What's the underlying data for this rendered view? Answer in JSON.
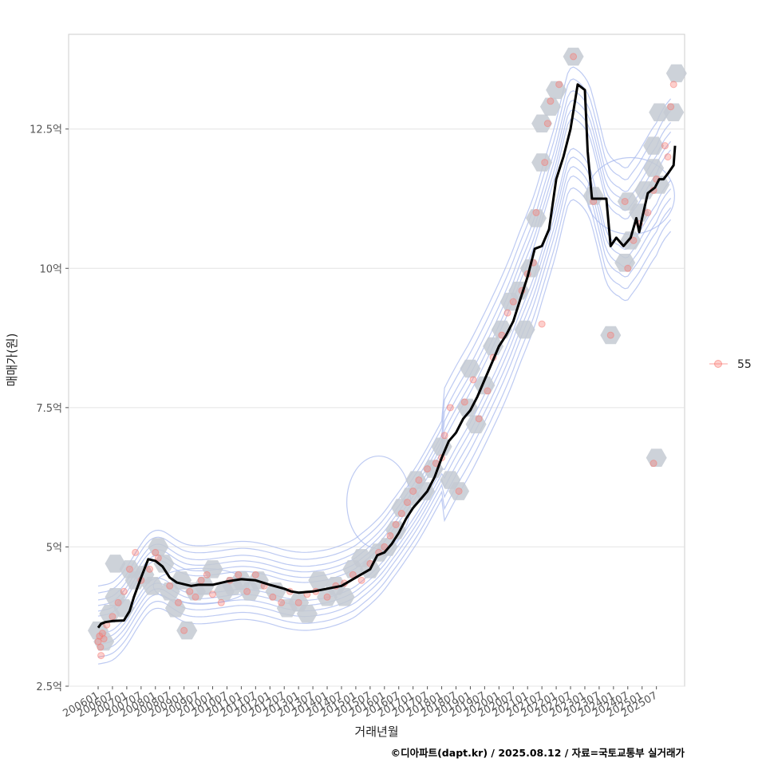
{
  "chart_data": {
    "type": "line",
    "xlabel": "거래년월",
    "ylabel": "매매가(원)",
    "caption": "©디아파트(dapt.kr) / 2025.08.12 / 자료=국토교통부 실거래가",
    "ylim": [
      2.5,
      14.2
    ],
    "y_ticks": [
      {
        "value": 2.5,
        "label": "2.5억"
      },
      {
        "value": 5,
        "label": "5억"
      },
      {
        "value": 7.5,
        "label": "7.5억"
      },
      {
        "value": 10,
        "label": "10억"
      },
      {
        "value": 12.5,
        "label": "12.5억"
      }
    ],
    "x_tick_labels": [
      "200601",
      "200607",
      "200701",
      "200707",
      "200801",
      "200807",
      "200901",
      "200907",
      "201001",
      "201007",
      "201101",
      "201107",
      "201201",
      "201207",
      "201301",
      "201307",
      "201401",
      "201407",
      "201501",
      "201507",
      "201601",
      "201607",
      "201701",
      "201707",
      "201801",
      "201807",
      "201901",
      "201907",
      "202001",
      "202007",
      "202101",
      "202107",
      "202201",
      "202207",
      "202301",
      "202307",
      "202401",
      "202407",
      "202501",
      "202507"
    ],
    "grid": true,
    "legend": {
      "position": "right",
      "entries": [
        {
          "label": "55",
          "color": "#f8766d"
        }
      ]
    },
    "colors": {
      "trend": "#000000",
      "points": "#f8766d",
      "hex": "#c4cad2",
      "contour": "#a7b8ee"
    },
    "series": [
      {
        "role": "moving-average",
        "points": [
          [
            2006.0,
            3.55
          ],
          [
            2006.1,
            3.62
          ],
          [
            2006.25,
            3.65
          ],
          [
            2006.5,
            3.67
          ],
          [
            2006.9,
            3.68
          ],
          [
            2007.1,
            3.85
          ],
          [
            2007.25,
            4.1
          ],
          [
            2007.5,
            4.45
          ],
          [
            2007.75,
            4.78
          ],
          [
            2008.0,
            4.75
          ],
          [
            2008.25,
            4.65
          ],
          [
            2008.5,
            4.45
          ],
          [
            2008.75,
            4.36
          ],
          [
            2009.0,
            4.33
          ],
          [
            2009.25,
            4.3
          ],
          [
            2009.5,
            4.32
          ],
          [
            2010.0,
            4.32
          ],
          [
            2010.5,
            4.38
          ],
          [
            2011.0,
            4.42
          ],
          [
            2011.5,
            4.4
          ],
          [
            2012.0,
            4.32
          ],
          [
            2012.5,
            4.25
          ],
          [
            2012.75,
            4.2
          ],
          [
            2013.0,
            4.18
          ],
          [
            2013.5,
            4.2
          ],
          [
            2014.0,
            4.25
          ],
          [
            2014.5,
            4.3
          ],
          [
            2015.0,
            4.45
          ],
          [
            2015.5,
            4.6
          ],
          [
            2015.75,
            4.85
          ],
          [
            2016.0,
            4.9
          ],
          [
            2016.25,
            5.05
          ],
          [
            2016.5,
            5.25
          ],
          [
            2016.75,
            5.5
          ],
          [
            2017.0,
            5.7
          ],
          [
            2017.25,
            5.85
          ],
          [
            2017.5,
            6.0
          ],
          [
            2017.75,
            6.25
          ],
          [
            2018.0,
            6.6
          ],
          [
            2018.25,
            6.9
          ],
          [
            2018.5,
            7.05
          ],
          [
            2018.75,
            7.3
          ],
          [
            2019.0,
            7.45
          ],
          [
            2019.25,
            7.7
          ],
          [
            2019.5,
            8.0
          ],
          [
            2019.75,
            8.3
          ],
          [
            2020.0,
            8.6
          ],
          [
            2020.25,
            8.8
          ],
          [
            2020.5,
            9.05
          ],
          [
            2020.75,
            9.45
          ],
          [
            2021.0,
            9.85
          ],
          [
            2021.25,
            10.35
          ],
          [
            2021.5,
            10.4
          ],
          [
            2021.75,
            10.7
          ],
          [
            2022.0,
            11.6
          ],
          [
            2022.25,
            12.0
          ],
          [
            2022.5,
            12.5
          ],
          [
            2022.75,
            13.3
          ],
          [
            2023.0,
            13.2
          ],
          [
            2023.1,
            12.1
          ],
          [
            2023.25,
            11.25
          ],
          [
            2023.75,
            11.25
          ],
          [
            2023.9,
            10.4
          ],
          [
            2024.1,
            10.55
          ],
          [
            2024.35,
            10.4
          ],
          [
            2024.6,
            10.55
          ],
          [
            2024.8,
            10.9
          ],
          [
            2024.9,
            10.65
          ],
          [
            2025.0,
            10.9
          ],
          [
            2025.2,
            11.35
          ],
          [
            2025.45,
            11.45
          ],
          [
            2025.6,
            11.6
          ],
          [
            2025.75,
            11.6
          ],
          [
            2025.9,
            11.7
          ],
          [
            2026.1,
            11.85
          ],
          [
            2026.15,
            12.2
          ]
        ]
      },
      {
        "role": "transactions",
        "points": [
          [
            2006.0,
            3.3
          ],
          [
            2006.05,
            3.4
          ],
          [
            2006.08,
            3.2
          ],
          [
            2006.1,
            3.05
          ],
          [
            2006.15,
            3.45
          ],
          [
            2006.2,
            3.35
          ],
          [
            2006.3,
            3.6
          ],
          [
            2006.5,
            3.75
          ],
          [
            2006.7,
            4.0
          ],
          [
            2006.9,
            4.2
          ],
          [
            2007.1,
            4.6
          ],
          [
            2007.3,
            4.9
          ],
          [
            2007.5,
            4.4
          ],
          [
            2007.8,
            4.6
          ],
          [
            2008.0,
            4.9
          ],
          [
            2008.1,
            4.8
          ],
          [
            2008.5,
            4.3
          ],
          [
            2008.8,
            4.0
          ],
          [
            2009.0,
            3.5
          ],
          [
            2009.2,
            4.2
          ],
          [
            2009.4,
            4.1
          ],
          [
            2009.6,
            4.4
          ],
          [
            2009.8,
            4.5
          ],
          [
            2010.0,
            4.15
          ],
          [
            2010.3,
            4.0
          ],
          [
            2010.6,
            4.4
          ],
          [
            2010.9,
            4.5
          ],
          [
            2011.2,
            4.2
          ],
          [
            2011.5,
            4.5
          ],
          [
            2011.8,
            4.3
          ],
          [
            2012.1,
            4.1
          ],
          [
            2012.4,
            4.0
          ],
          [
            2012.7,
            4.2
          ],
          [
            2013.0,
            4.0
          ],
          [
            2013.3,
            4.15
          ],
          [
            2013.6,
            4.2
          ],
          [
            2014.0,
            4.1
          ],
          [
            2014.3,
            4.3
          ],
          [
            2014.6,
            4.35
          ],
          [
            2014.9,
            4.5
          ],
          [
            2015.2,
            4.4
          ],
          [
            2015.5,
            4.7
          ],
          [
            2015.8,
            4.9
          ],
          [
            2016.0,
            5.0
          ],
          [
            2016.2,
            5.2
          ],
          [
            2016.4,
            5.4
          ],
          [
            2016.6,
            5.6
          ],
          [
            2016.8,
            5.8
          ],
          [
            2017.0,
            6.0
          ],
          [
            2017.2,
            6.2
          ],
          [
            2017.5,
            6.4
          ],
          [
            2017.8,
            6.5
          ],
          [
            2018.0,
            6.6
          ],
          [
            2018.1,
            7.0
          ],
          [
            2018.3,
            7.5
          ],
          [
            2018.6,
            6.0
          ],
          [
            2018.8,
            7.6
          ],
          [
            2019.1,
            8.0
          ],
          [
            2019.3,
            7.3
          ],
          [
            2019.6,
            7.8
          ],
          [
            2019.8,
            8.4
          ],
          [
            2020.1,
            8.8
          ],
          [
            2020.3,
            9.2
          ],
          [
            2020.5,
            9.4
          ],
          [
            2020.8,
            9.6
          ],
          [
            2021.0,
            9.9
          ],
          [
            2021.2,
            10.1
          ],
          [
            2021.5,
            9.0
          ],
          [
            2021.3,
            11.0
          ],
          [
            2021.6,
            11.9
          ],
          [
            2021.7,
            12.6
          ],
          [
            2021.8,
            13.0
          ],
          [
            2022.1,
            13.3
          ],
          [
            2022.6,
            13.8
          ],
          [
            2023.3,
            11.2
          ],
          [
            2023.9,
            8.8
          ],
          [
            2024.5,
            10.0
          ],
          [
            2024.4,
            11.2
          ],
          [
            2024.7,
            10.5
          ],
          [
            2024.9,
            10.8
          ],
          [
            2025.2,
            11.0
          ],
          [
            2025.4,
            11.4
          ],
          [
            2025.5,
            11.6
          ],
          [
            2025.8,
            12.2
          ],
          [
            2025.9,
            12.0
          ],
          [
            2026.0,
            12.9
          ],
          [
            2026.1,
            13.3
          ],
          [
            2025.4,
            6.5
          ]
        ]
      }
    ],
    "hexbins": [
      [
        2006.0,
        3.5
      ],
      [
        2006.2,
        3.3
      ],
      [
        2006.4,
        3.8
      ],
      [
        2006.6,
        4.1
      ],
      [
        2006.6,
        4.7
      ],
      [
        2006.9,
        3.9
      ],
      [
        2007.1,
        4.6
      ],
      [
        2007.3,
        4.4
      ],
      [
        2007.6,
        4.5
      ],
      [
        2007.9,
        4.3
      ],
      [
        2008.1,
        5.0
      ],
      [
        2008.3,
        4.7
      ],
      [
        2008.5,
        4.2
      ],
      [
        2008.7,
        3.9
      ],
      [
        2008.9,
        4.4
      ],
      [
        2009.1,
        3.5
      ],
      [
        2009.4,
        4.2
      ],
      [
        2009.7,
        4.3
      ],
      [
        2010.0,
        4.6
      ],
      [
        2010.4,
        4.2
      ],
      [
        2010.7,
        4.3
      ],
      [
        2011.0,
        4.4
      ],
      [
        2011.3,
        4.2
      ],
      [
        2011.6,
        4.4
      ],
      [
        2012.2,
        4.2
      ],
      [
        2012.6,
        3.9
      ],
      [
        2013.0,
        4.0
      ],
      [
        2013.3,
        3.8
      ],
      [
        2013.7,
        4.4
      ],
      [
        2014.0,
        4.1
      ],
      [
        2014.3,
        4.3
      ],
      [
        2014.6,
        4.1
      ],
      [
        2014.9,
        4.6
      ],
      [
        2015.2,
        4.8
      ],
      [
        2015.5,
        4.6
      ],
      [
        2015.8,
        4.9
      ],
      [
        2016.1,
        5.0
      ],
      [
        2016.4,
        5.3
      ],
      [
        2016.6,
        5.7
      ],
      [
        2016.9,
        5.9
      ],
      [
        2017.1,
        6.2
      ],
      [
        2017.4,
        6.0
      ],
      [
        2017.7,
        6.4
      ],
      [
        2018.0,
        6.8
      ],
      [
        2018.3,
        6.2
      ],
      [
        2018.6,
        6.0
      ],
      [
        2018.9,
        7.5
      ],
      [
        2019.2,
        7.2
      ],
      [
        2019.0,
        8.2
      ],
      [
        2019.5,
        7.9
      ],
      [
        2019.8,
        8.6
      ],
      [
        2020.1,
        8.9
      ],
      [
        2020.4,
        9.4
      ],
      [
        2020.7,
        9.6
      ],
      [
        2020.9,
        8.9
      ],
      [
        2021.1,
        10.0
      ],
      [
        2021.3,
        10.9
      ],
      [
        2021.5,
        11.9
      ],
      [
        2021.5,
        12.6
      ],
      [
        2021.8,
        12.9
      ],
      [
        2022.0,
        13.2
      ],
      [
        2022.6,
        13.8
      ],
      [
        2023.3,
        11.3
      ],
      [
        2023.9,
        8.8
      ],
      [
        2024.4,
        10.1
      ],
      [
        2024.6,
        10.5
      ],
      [
        2024.5,
        11.2
      ],
      [
        2024.9,
        11.0
      ],
      [
        2025.1,
        11.4
      ],
      [
        2025.4,
        11.8
      ],
      [
        2025.4,
        12.2
      ],
      [
        2025.6,
        11.5
      ],
      [
        2025.6,
        12.8
      ],
      [
        2026.1,
        12.8
      ],
      [
        2026.2,
        13.5
      ],
      [
        2025.5,
        6.6
      ]
    ]
  }
}
